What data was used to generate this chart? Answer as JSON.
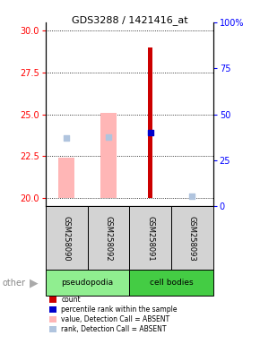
{
  "title": "GDS3288 / 1421416_at",
  "samples": [
    "GSM258090",
    "GSM258092",
    "GSM258091",
    "GSM258093"
  ],
  "ylim_left": [
    19.5,
    30.5
  ],
  "ylim_right": [
    0,
    100
  ],
  "yticks_left": [
    20,
    22.5,
    25,
    27.5,
    30
  ],
  "yticks_right": [
    0,
    25,
    50,
    75,
    100
  ],
  "count_bars": {
    "GSM258090": null,
    "GSM258092": null,
    "GSM258091": 29.0,
    "GSM258093": null
  },
  "count_color": "#cc0000",
  "count_base": 20.0,
  "count_bar_width": 0.12,
  "value_absent_bars": {
    "GSM258090": 22.4,
    "GSM258092": 25.1,
    "GSM258091": null,
    "GSM258093": null
  },
  "value_absent_color": "#ffb6b6",
  "value_absent_base": 20.0,
  "value_absent_bar_width": 0.38,
  "rank_absent_dots": {
    "GSM258090": 23.6,
    "GSM258092": 23.65,
    "GSM258091": null,
    "GSM258093": 20.1
  },
  "rank_absent_color": "#b0c4de",
  "percentile_dots": {
    "GSM258090": null,
    "GSM258092": null,
    "GSM258091": 23.9,
    "GSM258093": null
  },
  "percentile_color": "#0000cc",
  "dotsize": 18,
  "sample_bg_color": "#d3d3d3",
  "pseudo_color": "#90ee90",
  "cell_color": "#44cc44",
  "legend_items": [
    {
      "label": "count",
      "color": "#cc0000"
    },
    {
      "label": "percentile rank within the sample",
      "color": "#0000cc"
    },
    {
      "label": "value, Detection Call = ABSENT",
      "color": "#ffb6b6"
    },
    {
      "label": "rank, Detection Call = ABSENT",
      "color": "#b0c4de"
    }
  ]
}
